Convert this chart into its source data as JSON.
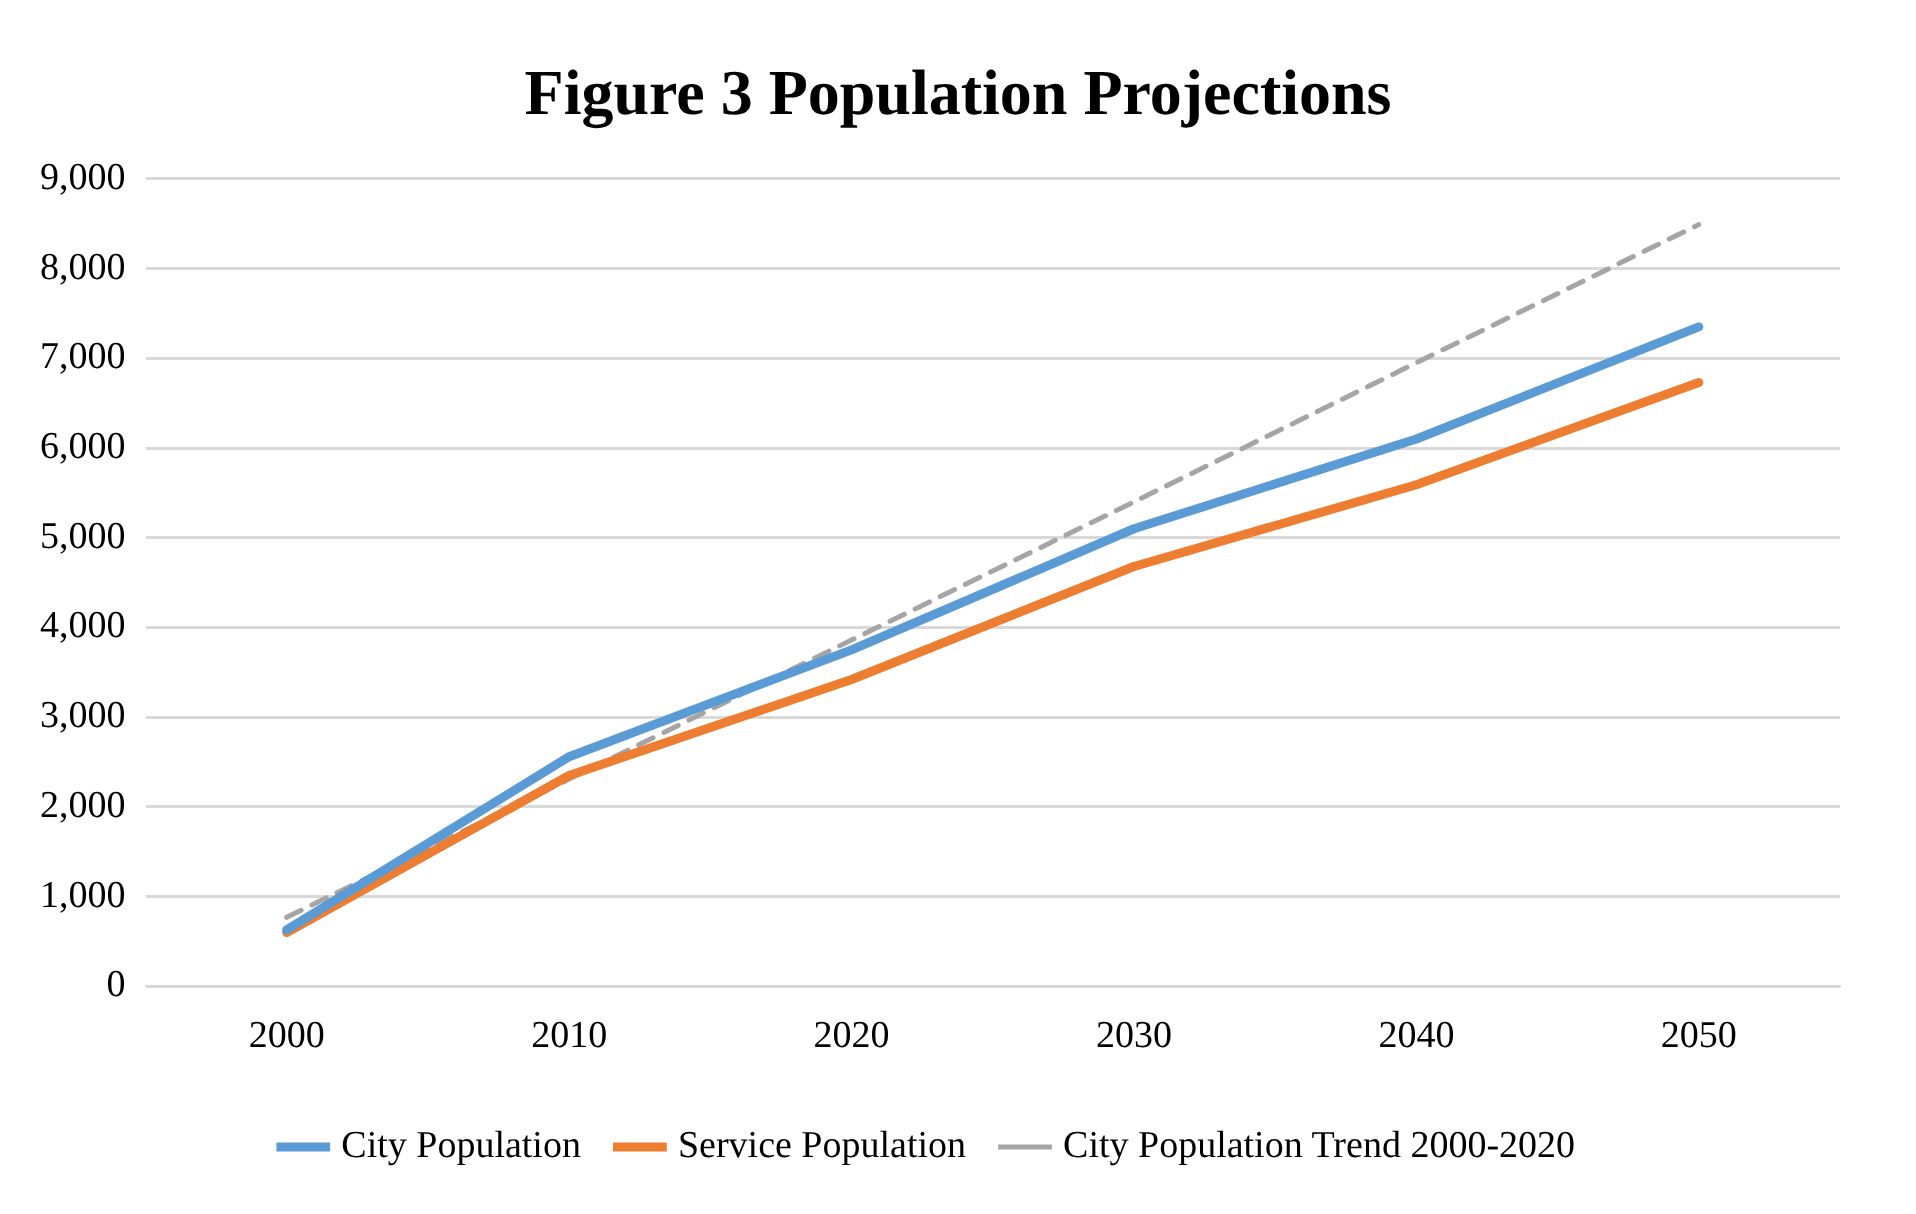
{
  "chart_data": {
    "type": "line",
    "title": "Figure 3 Population Projections",
    "categories": [
      "2000",
      "2010",
      "2020",
      "2030",
      "2040",
      "2050"
    ],
    "series": [
      {
        "name": "City Population",
        "color": "#5b9bd5",
        "values": [
          630,
          2560,
          3750,
          5100,
          6100,
          7350
        ]
      },
      {
        "name": "Service Population",
        "color": "#ed7d31",
        "values": [
          600,
          2350,
          3420,
          4680,
          5590,
          6730
        ]
      },
      {
        "name": "City Population Trend 2000-2020",
        "color": "#a5a5a5",
        "line_style": "dashed",
        "values": [
          770,
          2310,
          3860,
          5400,
          6950,
          8490
        ]
      }
    ],
    "ylim": [
      0,
      9000
    ],
    "yticks": [
      {
        "value": 0,
        "label": "0"
      },
      {
        "value": 1000,
        "label": "1,000"
      },
      {
        "value": 2000,
        "label": "2,000"
      },
      {
        "value": 3000,
        "label": "3,000"
      },
      {
        "value": 4000,
        "label": "4,000"
      },
      {
        "value": 5000,
        "label": "5,000"
      },
      {
        "value": 6000,
        "label": "6,000"
      },
      {
        "value": 7000,
        "label": "7,000"
      },
      {
        "value": 8000,
        "label": "8,000"
      },
      {
        "value": 9000,
        "label": "9,000"
      }
    ],
    "grid": "y",
    "legend": "bottom",
    "marker": "none"
  }
}
